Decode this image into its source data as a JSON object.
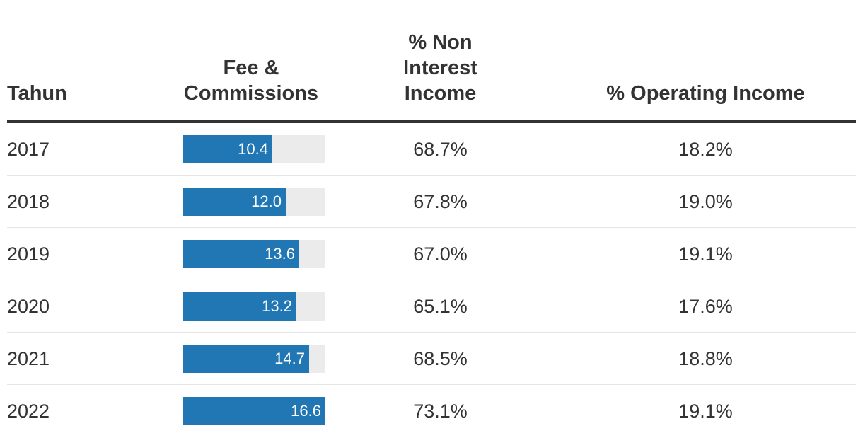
{
  "chart_data": {
    "type": "table",
    "columns": [
      "Tahun",
      "Fee & Commissions",
      "% Non Interest Income",
      "% Operating Income"
    ],
    "bar_max": 16.6,
    "bar_color": "#2176b4",
    "bar_track_color": "#ebebeb",
    "rows": [
      {
        "year": "2017",
        "fee": 10.4,
        "fee_label": "10.4",
        "nii": "68.7%",
        "oi": "18.2%"
      },
      {
        "year": "2018",
        "fee": 12.0,
        "fee_label": "12.0",
        "nii": "67.8%",
        "oi": "19.0%"
      },
      {
        "year": "2019",
        "fee": 13.6,
        "fee_label": "13.6",
        "nii": "67.0%",
        "oi": "19.1%"
      },
      {
        "year": "2020",
        "fee": 13.2,
        "fee_label": "13.2",
        "nii": "65.1%",
        "oi": "17.6%"
      },
      {
        "year": "2021",
        "fee": 14.7,
        "fee_label": "14.7",
        "nii": "68.5%",
        "oi": "18.8%"
      },
      {
        "year": "2022",
        "fee": 16.6,
        "fee_label": "16.6",
        "nii": "73.1%",
        "oi": "19.1%"
      }
    ]
  }
}
